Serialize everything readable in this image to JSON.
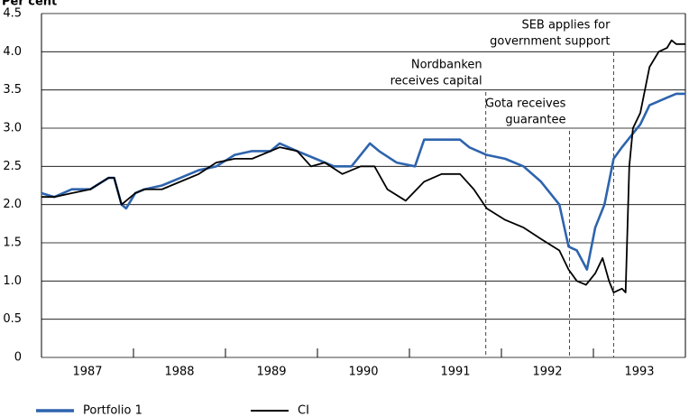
{
  "chart_data": {
    "type": "line",
    "ylabel": "Per cent",
    "xlim": [
      1987,
      1994
    ],
    "ylim": [
      0,
      4.5
    ],
    "yticks": [
      {
        "value": 0,
        "label": "0"
      },
      0.5,
      {
        "value": 1,
        "label": "1.0"
      },
      1.5,
      {
        "value": 2,
        "label": "2.0"
      },
      2.5,
      {
        "value": 3,
        "label": "3.0"
      },
      3.5,
      {
        "value": 4,
        "label": "4.0"
      },
      4.5
    ],
    "xticks": [
      {
        "value": 1987.5,
        "label": "1987"
      },
      {
        "value": 1988.5,
        "label": "1988"
      },
      {
        "value": 1989.5,
        "label": "1989"
      },
      {
        "value": 1990.5,
        "label": "1990"
      },
      {
        "value": 1991.5,
        "label": "1991"
      },
      {
        "value": 1992.5,
        "label": "1992"
      },
      {
        "value": 1993.5,
        "label": "1993"
      }
    ],
    "xminor": [
      1988,
      1989,
      1990,
      1991,
      1992,
      1993
    ],
    "grid": true,
    "series": [
      {
        "name": "Portfolio 1",
        "color": "#2e64ad",
        "x": [
          1987.0,
          1987.14,
          1987.33,
          1987.53,
          1987.73,
          1987.79,
          1987.87,
          1987.92,
          1988.02,
          1988.12,
          1988.31,
          1988.51,
          1988.71,
          1988.9,
          1989.1,
          1989.29,
          1989.49,
          1989.59,
          1989.78,
          1989.98,
          1990.18,
          1990.37,
          1990.57,
          1990.67,
          1990.86,
          1991.06,
          1991.16,
          1991.35,
          1991.55,
          1991.65,
          1991.84,
          1992.04,
          1992.24,
          1992.43,
          1992.63,
          1992.73,
          1992.82,
          1992.93,
          1993.02,
          1993.12,
          1993.22,
          1993.31,
          1993.41,
          1993.51,
          1993.61,
          1993.8,
          1993.9,
          1994.0
        ],
        "values": [
          2.15,
          2.1,
          2.2,
          2.2,
          2.35,
          2.35,
          2.0,
          1.95,
          2.15,
          2.2,
          2.25,
          2.35,
          2.45,
          2.5,
          2.65,
          2.7,
          2.7,
          2.8,
          2.7,
          2.6,
          2.5,
          2.5,
          2.8,
          2.7,
          2.55,
          2.5,
          2.85,
          2.85,
          2.85,
          2.75,
          2.65,
          2.6,
          2.5,
          2.3,
          2.0,
          1.45,
          1.4,
          1.15,
          1.7,
          2.0,
          2.6,
          2.75,
          2.9,
          3.05,
          3.3,
          3.4,
          3.45,
          3.45
        ]
      },
      {
        "name": "CI",
        "color": "#000000",
        "x": [
          1987.0,
          1987.14,
          1987.33,
          1987.53,
          1987.73,
          1987.79,
          1987.87,
          1987.92,
          1988.02,
          1988.12,
          1988.31,
          1988.51,
          1988.71,
          1988.9,
          1989.1,
          1989.29,
          1989.49,
          1989.59,
          1989.78,
          1989.93,
          1990.08,
          1990.27,
          1990.47,
          1990.62,
          1990.76,
          1990.96,
          1991.16,
          1991.35,
          1991.55,
          1991.7,
          1991.84,
          1992.04,
          1992.24,
          1992.43,
          1992.63,
          1992.73,
          1992.82,
          1992.92,
          1993.02,
          1993.1,
          1993.17,
          1993.22,
          1993.31,
          1993.35,
          1993.39,
          1993.43,
          1993.51,
          1993.56,
          1993.61,
          1993.71,
          1993.8,
          1993.85,
          1993.9,
          1994.0
        ],
        "values": [
          2.1,
          2.1,
          2.15,
          2.2,
          2.35,
          2.35,
          2.0,
          2.05,
          2.15,
          2.2,
          2.2,
          2.3,
          2.4,
          2.55,
          2.6,
          2.6,
          2.7,
          2.75,
          2.7,
          2.5,
          2.55,
          2.4,
          2.5,
          2.5,
          2.2,
          2.05,
          2.3,
          2.4,
          2.4,
          2.2,
          1.95,
          1.8,
          1.7,
          1.55,
          1.4,
          1.15,
          1.0,
          0.95,
          1.1,
          1.3,
          1.0,
          0.85,
          0.9,
          0.85,
          2.5,
          3.0,
          3.2,
          3.5,
          3.8,
          4.0,
          4.05,
          4.15,
          4.1,
          4.1
        ]
      }
    ],
    "annotations": [
      {
        "x": 1991.83,
        "text": [
          "Nordbanken",
          "receives capital"
        ]
      },
      {
        "x": 1992.74,
        "text": [
          "Gota receives",
          "guarantee"
        ]
      },
      {
        "x": 1993.22,
        "text": [
          "SEB applies for",
          "government support"
        ]
      }
    ]
  }
}
